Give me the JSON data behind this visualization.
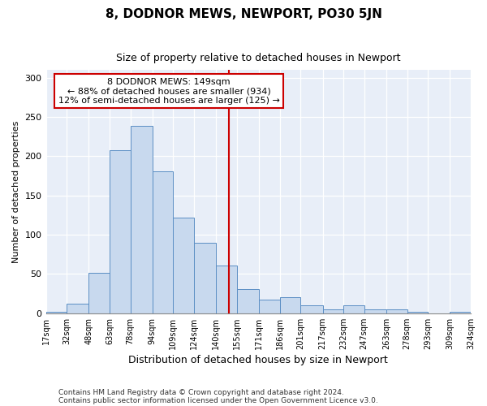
{
  "title": "8, DODNOR MEWS, NEWPORT, PO30 5JN",
  "subtitle": "Size of property relative to detached houses in Newport",
  "xlabel": "Distribution of detached houses by size in Newport",
  "ylabel": "Number of detached properties",
  "bar_color": "#c8d9ee",
  "bar_edge_color": "#5b8ec4",
  "background_color": "#e8eef8",
  "vline_x": 149,
  "vline_color": "#cc0000",
  "annotation_title": "8 DODNOR MEWS: 149sqm",
  "annotation_line1": "← 88% of detached houses are smaller (934)",
  "annotation_line2": "12% of semi-detached houses are larger (125) →",
  "footnote1": "Contains HM Land Registry data © Crown copyright and database right 2024.",
  "footnote2": "Contains public sector information licensed under the Open Government Licence v3.0.",
  "bin_edges": [
    17,
    32,
    48,
    63,
    78,
    94,
    109,
    124,
    140,
    155,
    171,
    186,
    201,
    217,
    232,
    247,
    263,
    278,
    293,
    309,
    324
  ],
  "bar_heights": [
    2,
    12,
    52,
    208,
    239,
    181,
    122,
    90,
    61,
    31,
    17,
    20,
    10,
    5,
    10,
    5,
    5,
    2,
    0,
    2
  ],
  "ylim": [
    0,
    310
  ],
  "yticks": [
    0,
    50,
    100,
    150,
    200,
    250,
    300
  ],
  "title_fontsize": 11,
  "subtitle_fontsize": 9,
  "ylabel_fontsize": 8,
  "xlabel_fontsize": 9,
  "tick_fontsize": 7,
  "footnote_fontsize": 6.5,
  "annotation_fontsize": 8
}
